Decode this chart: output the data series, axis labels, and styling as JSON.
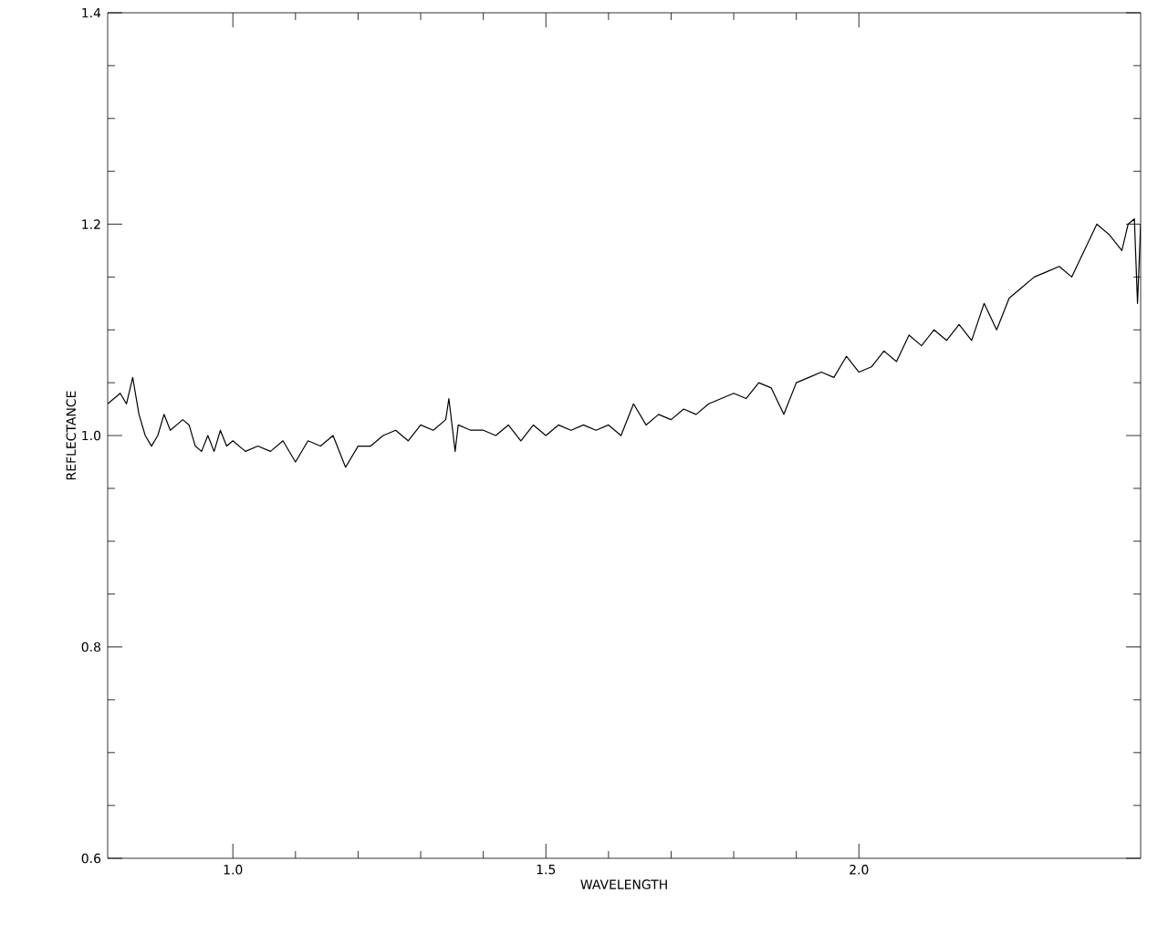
{
  "chart_data": {
    "type": "line",
    "xlabel": "WAVELENGTH",
    "ylabel": "REFLECTANCE",
    "xlim": [
      0.8,
      2.45
    ],
    "ylim": [
      0.6,
      1.4
    ],
    "xticks": [
      {
        "value": 1.0,
        "label": "1.0"
      },
      {
        "value": 1.5,
        "label": "1.5"
      },
      {
        "value": 2.0,
        "label": "2.0"
      }
    ],
    "yticks": [
      {
        "value": 0.6,
        "label": "0.6"
      },
      {
        "value": 0.8,
        "label": "0.8"
      },
      {
        "value": 1.0,
        "label": "1.0"
      },
      {
        "value": 1.2,
        "label": "1.2"
      },
      {
        "value": 1.4,
        "label": "1.4"
      }
    ],
    "marker": "none",
    "line_style": "solid",
    "series": [
      {
        "color": "#000000",
        "x": [
          0.8,
          0.81,
          0.82,
          0.83,
          0.84,
          0.85,
          0.86,
          0.87,
          0.88,
          0.89,
          0.9,
          0.91,
          0.92,
          0.93,
          0.94,
          0.95,
          0.96,
          0.97,
          0.98,
          0.99,
          1.0,
          1.02,
          1.04,
          1.06,
          1.08,
          1.1,
          1.12,
          1.14,
          1.16,
          1.18,
          1.2,
          1.22,
          1.24,
          1.26,
          1.28,
          1.3,
          1.32,
          1.34,
          1.345,
          1.355,
          1.36,
          1.38,
          1.4,
          1.42,
          1.44,
          1.46,
          1.48,
          1.5,
          1.52,
          1.54,
          1.56,
          1.58,
          1.6,
          1.62,
          1.64,
          1.66,
          1.68,
          1.7,
          1.72,
          1.74,
          1.76,
          1.78,
          1.8,
          1.82,
          1.84,
          1.86,
          1.88,
          1.9,
          1.92,
          1.94,
          1.96,
          1.98,
          2.0,
          2.02,
          2.04,
          2.06,
          2.08,
          2.1,
          2.12,
          2.14,
          2.16,
          2.18,
          2.2,
          2.22,
          2.24,
          2.26,
          2.28,
          2.3,
          2.32,
          2.34,
          2.36,
          2.38,
          2.4,
          2.42,
          2.43,
          2.44,
          2.445,
          2.45
        ],
        "values": [
          1.03,
          1.035,
          1.04,
          1.03,
          1.055,
          1.02,
          1.0,
          0.99,
          1.0,
          1.02,
          1.005,
          1.01,
          1.015,
          1.01,
          0.99,
          0.985,
          1.0,
          0.985,
          1.005,
          0.99,
          0.995,
          0.985,
          0.99,
          0.985,
          0.995,
          0.975,
          0.995,
          0.99,
          1.0,
          0.97,
          0.99,
          0.99,
          1.0,
          1.005,
          0.995,
          1.01,
          1.005,
          1.015,
          1.035,
          0.985,
          1.01,
          1.005,
          1.005,
          1.0,
          1.01,
          0.995,
          1.01,
          1.0,
          1.01,
          1.005,
          1.01,
          1.005,
          1.01,
          1.0,
          1.03,
          1.01,
          1.02,
          1.015,
          1.025,
          1.02,
          1.03,
          1.035,
          1.04,
          1.035,
          1.05,
          1.045,
          1.02,
          1.05,
          1.055,
          1.06,
          1.055,
          1.075,
          1.06,
          1.065,
          1.08,
          1.07,
          1.095,
          1.085,
          1.1,
          1.09,
          1.105,
          1.09,
          1.125,
          1.1,
          1.13,
          1.14,
          1.15,
          1.155,
          1.16,
          1.15,
          1.175,
          1.2,
          1.19,
          1.175,
          1.2,
          1.205,
          1.125,
          1.2
        ]
      }
    ]
  }
}
